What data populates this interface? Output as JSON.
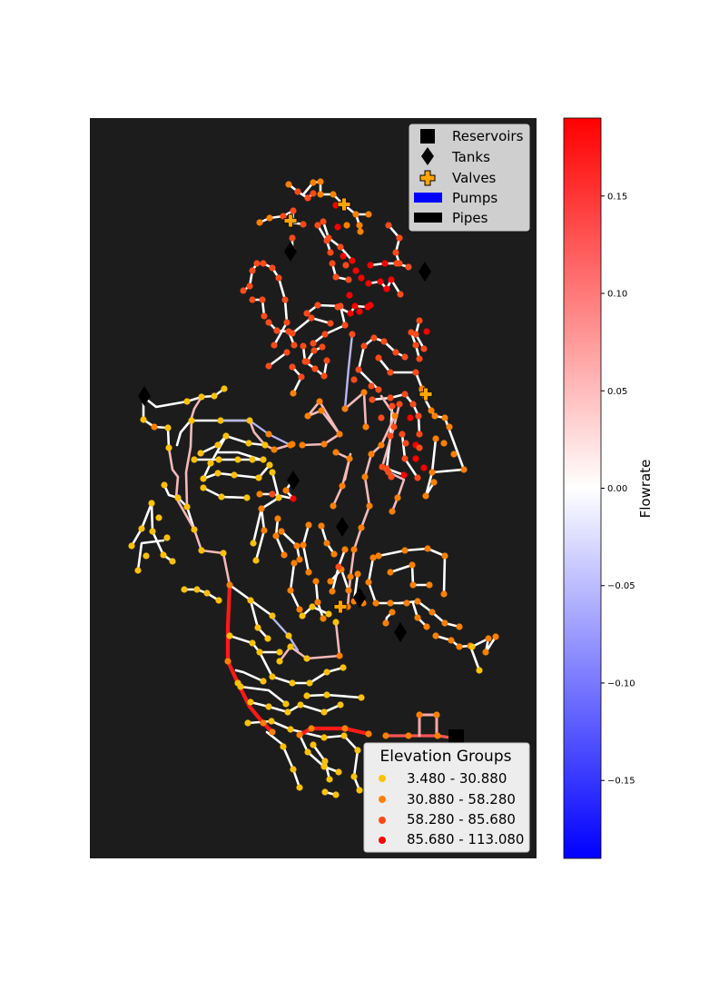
{
  "colors": {
    "map_background": "#1c1c1c",
    "pipe_default": "#ffffff",
    "elevation_groups": [
      "#ffc107",
      "#ff8000",
      "#ff4a1a",
      "#ff0000"
    ],
    "pump": "#0000ff",
    "pipe_legend": "#000000",
    "valve": "#ffa500",
    "colormap": [
      "#0000ff",
      "#ffffff",
      "#ff0000"
    ]
  },
  "legend_network": {
    "items": [
      {
        "label": "Reservoirs",
        "icon": "square-marker-icon"
      },
      {
        "label": "Tanks",
        "icon": "diamond-marker-icon"
      },
      {
        "label": "Valves",
        "icon": "plus-marker-icon"
      },
      {
        "label": "Pumps",
        "icon": "blue-rect-patch-icon"
      },
      {
        "label": "Pipes",
        "icon": "black-rect-patch-icon"
      }
    ]
  },
  "legend_elevation": {
    "title": "Elevation Groups",
    "items": [
      {
        "label": "3.480 - 30.880"
      },
      {
        "label": "30.880 - 58.280"
      },
      {
        "label": "58.280 - 85.680"
      },
      {
        "label": "85.680 - 113.080"
      }
    ]
  },
  "colorbar": {
    "label": "Flowrate",
    "min": -0.19,
    "max": 0.19,
    "ticks": [
      {
        "value": 0.15,
        "label": "0.15"
      },
      {
        "value": 0.1,
        "label": "0.10"
      },
      {
        "value": 0.05,
        "label": "0.05"
      },
      {
        "value": 0.0,
        "label": "0.00"
      },
      {
        "value": -0.05,
        "label": "−0.05"
      },
      {
        "value": -0.1,
        "label": "−0.10"
      },
      {
        "value": -0.15,
        "label": "−0.15"
      }
    ]
  }
}
